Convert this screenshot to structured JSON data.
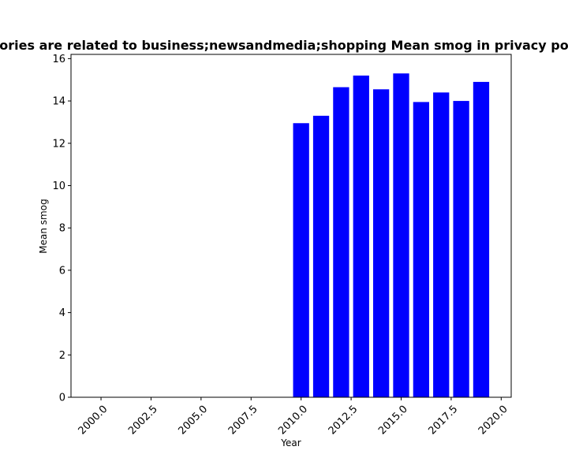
{
  "chart_data": {
    "type": "bar",
    "title": "ories are related to business;newsandmedia;shopping Mean smog in privacy po",
    "xlabel": "Year",
    "ylabel": "Mean smog",
    "x": [
      2010,
      2011,
      2012,
      2013,
      2014,
      2015,
      2016,
      2017,
      2018,
      2019
    ],
    "values": [
      12.95,
      13.3,
      14.65,
      15.2,
      14.55,
      15.3,
      13.95,
      14.4,
      14.0,
      14.9
    ],
    "bar_color": "#0000ff",
    "xlim": [
      1998.5,
      2020.5
    ],
    "ylim": [
      0,
      16.2
    ],
    "xticks": [
      2000,
      2002.5,
      2005,
      2007.5,
      2010,
      2012.5,
      2015,
      2017.5,
      2020
    ],
    "xtick_labels": [
      "2000.0",
      "2002.5",
      "2005.0",
      "2007.5",
      "2010.0",
      "2012.5",
      "2015.0",
      "2017.5",
      "2020.0"
    ],
    "yticks": [
      0,
      2,
      4,
      6,
      8,
      10,
      12,
      14,
      16
    ],
    "ytick_labels": [
      "0",
      "2",
      "4",
      "6",
      "8",
      "10",
      "12",
      "14",
      "16"
    ],
    "bar_width": 0.8,
    "grid": false,
    "legend": "none"
  }
}
